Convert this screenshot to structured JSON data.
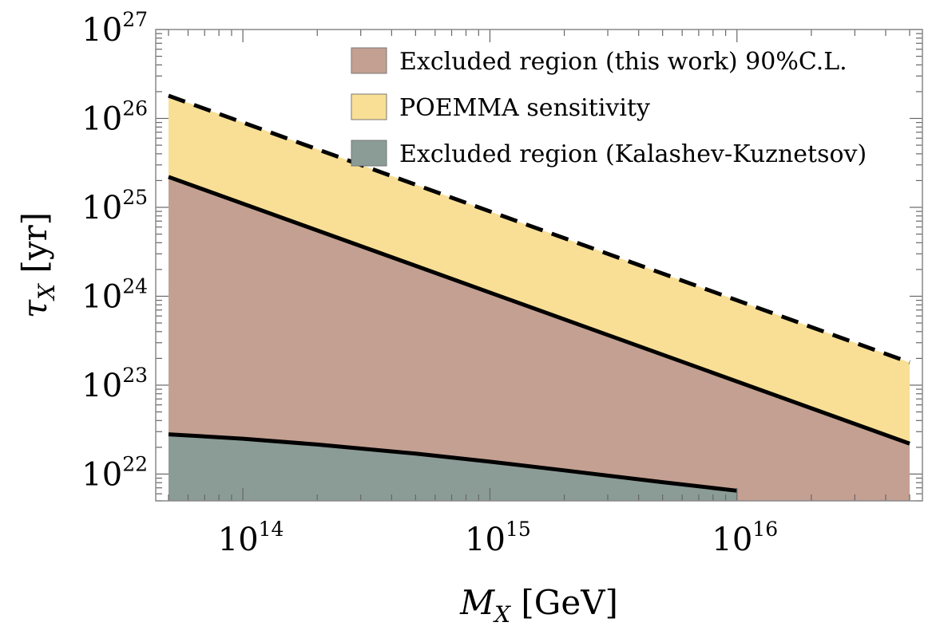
{
  "chart_data": {
    "type": "area",
    "xlabel": {
      "symbol": "M",
      "sub": "X",
      "unit": "[GeV]"
    },
    "ylabel": {
      "symbol": "τ",
      "sub": "X",
      "unit": "[yr]"
    },
    "x_scale": "log",
    "y_scale": "log",
    "xlim": [
      50000000000000,
      50000000000000000
    ],
    "ylim": [
      5e+21,
      1e+27
    ],
    "x_ticks": [
      {
        "value": 100000000000000.0,
        "base": "10",
        "exp": "14"
      },
      {
        "value": 1000000000000000.0,
        "base": "10",
        "exp": "15"
      },
      {
        "value": 1e+16,
        "base": "10",
        "exp": "16"
      }
    ],
    "y_ticks": [
      {
        "value": 1e+22,
        "base": "10",
        "exp": "22"
      },
      {
        "value": 1e+23,
        "base": "10",
        "exp": "23"
      },
      {
        "value": 1e+24,
        "base": "10",
        "exp": "24"
      },
      {
        "value": 1e+25,
        "base": "10",
        "exp": "25"
      },
      {
        "value": 1e+26,
        "base": "10",
        "exp": "26"
      },
      {
        "value": 1e+27,
        "base": "10",
        "exp": "27"
      }
    ],
    "grid": false,
    "legend_position": "top-right",
    "series": [
      {
        "name": "POEMMA sensitivity",
        "color": "#f8df95",
        "x": [
          50000000000000,
          50000000000000000
        ],
        "y": [
          1.8e+26,
          1.8e+23
        ],
        "boundary": "dashed"
      },
      {
        "name": "Excluded region (this work) 90%C.L.",
        "color": "#c4a092",
        "x": [
          50000000000000,
          50000000000000000
        ],
        "y": [
          2.2e+25,
          2.2e+22
        ],
        "boundary": "solid"
      },
      {
        "name": "Excluded region (Kalashev-Kuznetsov)",
        "color": "#8b9c97",
        "x": [
          50000000000000,
          100000000000000,
          200000000000000,
          500000000000000,
          1000000000000000,
          2000000000000000,
          5000000000000000,
          10000000000000000
        ],
        "y": [
          2.8e+22,
          2.5e+22,
          2.15e+22,
          1.7e+22,
          1.38e+22,
          1.1e+22,
          8.1e+21,
          6.5e+21
        ],
        "boundary": "solid"
      }
    ],
    "legend_order": [
      1,
      0,
      2
    ]
  }
}
